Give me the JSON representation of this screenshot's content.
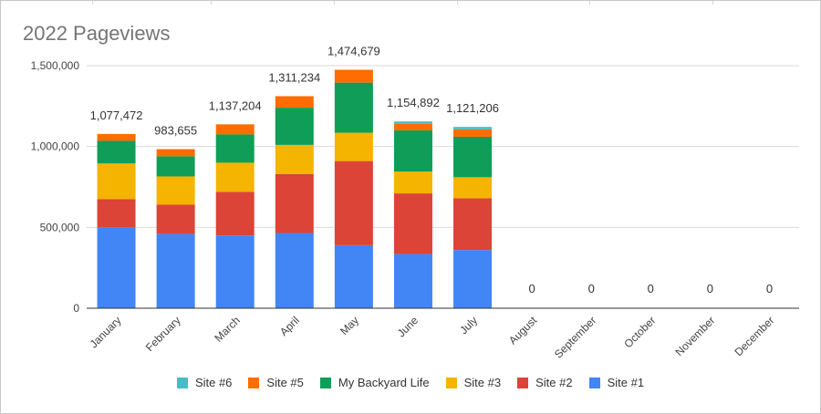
{
  "chart_data": {
    "type": "bar",
    "stacked": true,
    "title": "2022 Pageviews",
    "categories": [
      "January",
      "February",
      "March",
      "April",
      "May",
      "June",
      "July",
      "August",
      "September",
      "October",
      "November",
      "December"
    ],
    "series": [
      {
        "name": "Site #1",
        "color": "#4285f4",
        "values": [
          500000,
          460000,
          450000,
          465000,
          390000,
          335000,
          360000,
          0,
          0,
          0,
          0,
          0
        ]
      },
      {
        "name": "Site #2",
        "color": "#db4437",
        "values": [
          175000,
          180000,
          270000,
          365000,
          520000,
          375000,
          320000,
          0,
          0,
          0,
          0,
          0
        ]
      },
      {
        "name": "Site #3",
        "color": "#f4b400",
        "values": [
          220000,
          175000,
          180000,
          180000,
          175000,
          135000,
          130000,
          0,
          0,
          0,
          0,
          0
        ]
      },
      {
        "name": "My Backyard Life",
        "color": "#0f9d58",
        "values": [
          140000,
          125000,
          175000,
          230000,
          310000,
          255000,
          250000,
          0,
          0,
          0,
          0,
          0
        ]
      },
      {
        "name": "Site #5",
        "color": "#ff6d01",
        "values": [
          42472,
          43655,
          62204,
          71234,
          79679,
          40000,
          46206,
          0,
          0,
          0,
          0,
          0
        ]
      },
      {
        "name": "Site #6",
        "color": "#46bdc6",
        "values": [
          0,
          0,
          0,
          0,
          0,
          14892,
          15000,
          0,
          0,
          0,
          0,
          0
        ]
      }
    ],
    "totals": [
      "1,077,472",
      "983,655",
      "1,137,204",
      "1,311,234",
      "1,474,679",
      "1,154,892",
      "1,121,206",
      "0",
      "0",
      "0",
      "0",
      "0"
    ],
    "yticks": [
      0,
      500000,
      1000000,
      1500000
    ],
    "ytick_labels": [
      "0",
      "500,000",
      "1,000,000",
      "1,500,000"
    ],
    "ylim": [
      0,
      1500000
    ],
    "grid": true,
    "legend_position": "bottom",
    "legend_order": [
      "Site #6",
      "Site #5",
      "My Backyard Life",
      "Site #3",
      "Site #2",
      "Site #1"
    ]
  }
}
